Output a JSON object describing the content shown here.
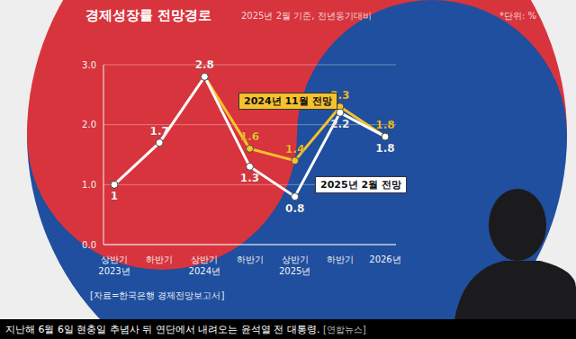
{
  "chart_data": {
    "type": "line",
    "title": "경제성장률 전망경로",
    "subtitle": "2025년 2월 기준, 전년동기대비",
    "annotations": {
      "unit": "*단위: %",
      "source": "[자료=한국은행 경제전망보고서]",
      "caption": "지난해 6월 6일 현충일 추념사 뒤 연단에서 내려오는 윤석열 전 대통령.",
      "credit": "[연합뉴스]"
    },
    "categories": [
      "상반기\n2023년",
      "하반기",
      "상반기\n2024년",
      "하반기",
      "상반기\n2025년",
      "하반기",
      "2026년"
    ],
    "series": [
      {
        "name": "2024년 11월 전망",
        "color": "#f5c22e",
        "values": [
          null,
          null,
          2.8,
          1.6,
          1.4,
          2.3,
          1.8
        ],
        "value_labels": [
          null,
          null,
          null,
          "1.6",
          "1.4",
          "2.3",
          "1.8"
        ],
        "marker": "circle"
      },
      {
        "name": "2025년 2월 전망",
        "color": "#ffffff",
        "values": [
          1,
          1.7,
          2.8,
          1.3,
          0.8,
          2.2,
          1.8
        ],
        "marker": "circle"
      }
    ],
    "ylim": [
      0,
      3
    ],
    "yticks": [
      {
        "value": 0,
        "label": "0.0"
      },
      {
        "value": 1,
        "label": "1.0"
      },
      {
        "value": 2,
        "label": "2.0"
      },
      {
        "value": 3,
        "label": "3.0"
      }
    ],
    "grid": true,
    "data_labels": true
  }
}
